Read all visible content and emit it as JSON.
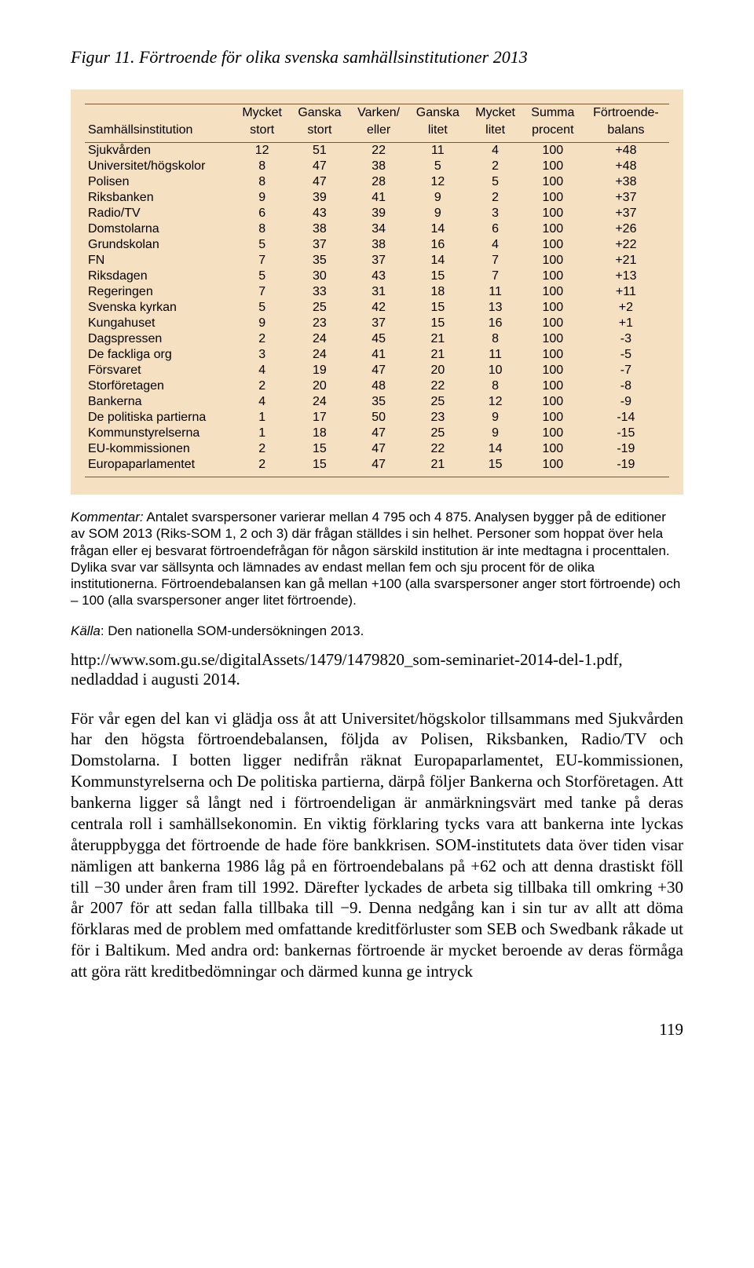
{
  "figure": {
    "label": "Figur 11.",
    "title": "Förtroende för olika svenska samhällsinstitutioner 2013"
  },
  "table": {
    "background_color": "#f5e0c2",
    "rule_color": "#7a5a30",
    "header_fontsize": 16,
    "body_fontsize": 16,
    "columns": [
      {
        "line1": "",
        "line2": "Samhällsinstitution",
        "align": "left"
      },
      {
        "line1": "Mycket",
        "line2": "stort"
      },
      {
        "line1": "Ganska",
        "line2": "stort"
      },
      {
        "line1": "Varken/",
        "line2": "eller"
      },
      {
        "line1": "Ganska",
        "line2": "litet"
      },
      {
        "line1": "Mycket",
        "line2": "litet"
      },
      {
        "line1": "Summa",
        "line2": "procent"
      },
      {
        "line1": "Förtroende-",
        "line2": "balans"
      }
    ],
    "rows": [
      {
        "name": "Sjukvården",
        "v": [
          "12",
          "51",
          "22",
          "11",
          "4",
          "100",
          "+48"
        ]
      },
      {
        "name": "Universitet/högskolor",
        "v": [
          "8",
          "47",
          "38",
          "5",
          "2",
          "100",
          "+48"
        ]
      },
      {
        "name": "Polisen",
        "v": [
          "8",
          "47",
          "28",
          "12",
          "5",
          "100",
          "+38"
        ]
      },
      {
        "name": "Riksbanken",
        "v": [
          "9",
          "39",
          "41",
          "9",
          "2",
          "100",
          "+37"
        ]
      },
      {
        "name": "Radio/TV",
        "v": [
          "6",
          "43",
          "39",
          "9",
          "3",
          "100",
          "+37"
        ]
      },
      {
        "name": "Domstolarna",
        "v": [
          "8",
          "38",
          "34",
          "14",
          "6",
          "100",
          "+26"
        ]
      },
      {
        "name": "Grundskolan",
        "v": [
          "5",
          "37",
          "38",
          "16",
          "4",
          "100",
          "+22"
        ]
      },
      {
        "name": "FN",
        "v": [
          "7",
          "35",
          "37",
          "14",
          "7",
          "100",
          "+21"
        ]
      },
      {
        "name": "Riksdagen",
        "v": [
          "5",
          "30",
          "43",
          "15",
          "7",
          "100",
          "+13"
        ]
      },
      {
        "name": "Regeringen",
        "v": [
          "7",
          "33",
          "31",
          "18",
          "11",
          "100",
          "+11"
        ]
      },
      {
        "name": "Svenska kyrkan",
        "v": [
          "5",
          "25",
          "42",
          "15",
          "13",
          "100",
          "+2"
        ]
      },
      {
        "name": "Kungahuset",
        "v": [
          "9",
          "23",
          "37",
          "15",
          "16",
          "100",
          "+1"
        ]
      },
      {
        "name": "Dagspressen",
        "v": [
          "2",
          "24",
          "45",
          "21",
          "8",
          "100",
          "-3"
        ]
      },
      {
        "name": "De fackliga org",
        "v": [
          "3",
          "24",
          "41",
          "21",
          "11",
          "100",
          "-5"
        ]
      },
      {
        "name": "Försvaret",
        "v": [
          "4",
          "19",
          "47",
          "20",
          "10",
          "100",
          "-7"
        ]
      },
      {
        "name": "Storföretagen",
        "v": [
          "2",
          "20",
          "48",
          "22",
          "8",
          "100",
          "-8"
        ]
      },
      {
        "name": "Bankerna",
        "v": [
          "4",
          "24",
          "35",
          "25",
          "12",
          "100",
          "-9"
        ]
      },
      {
        "name": "De politiska partierna",
        "v": [
          "1",
          "17",
          "50",
          "23",
          "9",
          "100",
          "-14"
        ]
      },
      {
        "name": "Kommunstyrelserna",
        "v": [
          "1",
          "18",
          "47",
          "25",
          "9",
          "100",
          "-15"
        ]
      },
      {
        "name": "EU-kommissionen",
        "v": [
          "2",
          "15",
          "47",
          "22",
          "14",
          "100",
          "-19"
        ]
      },
      {
        "name": "Europaparlamentet",
        "v": [
          "2",
          "15",
          "47",
          "21",
          "15",
          "100",
          "-19"
        ]
      }
    ]
  },
  "kommentar": {
    "label": "Kommentar:",
    "text": "Antalet svarspersoner varierar mellan 4 795 och 4 875. Analysen bygger på de editioner av SOM 2013 (Riks-SOM 1, 2 och 3) där frågan ställdes i sin helhet. Personer som hoppat över hela frågan eller ej besvarat förtroendefrågan för någon särskild institution är inte medtagna i procenttalen. Dylika svar var sällsynta och lämnades av endast mellan fem och sju procent för de olika institutionerna. Förtroendebalansen kan gå mellan +100 (alla svarspersoner anger stort förtroende) och – 100 (alla svarspersoner anger litet förtroende)."
  },
  "kalla": {
    "label": "Källa",
    "text": ": Den nationella SOM-undersökningen 2013."
  },
  "link": {
    "text": "http://www.som.gu.se/digitalAssets/1479/1479820_som-seminariet-2014-del-1.pdf, nedladdad i augusti 2014."
  },
  "paragraph": {
    "text": "För vår egen del kan vi glädja oss åt att Universitet/högskolor tillsammans med Sjukvården har den högsta förtroendebalansen, följda av Polisen, Riksbanken, Radio/TV och Domstolarna. I botten ligger nedifrån räknat Europaparlamentet, EU-kommissionen, Kommunstyrelserna och De politiska partierna, därpå följer Bankerna och Storföretagen. Att bankerna ligger så långt ned i förtroendeligan är anmärkningsvärt med tanke på deras centrala roll i samhällsekonomin. En viktig förklaring tycks vara att bankerna inte lyckas återuppbygga det förtroende de hade före bankkrisen. SOM-institutets data över tiden visar nämligen att bankerna 1986 låg på en förtroendebalans på +62 och att denna drastiskt föll till −30 under åren fram till 1992. Därefter lyckades de arbeta sig tillbaka till omkring +30 år 2007 för att sedan falla tillbaka till −9. Denna nedgång kan i sin tur av allt att döma förklaras med de problem med omfattande kreditförluster som SEB och Swedbank råkade ut för i Baltikum. Med andra ord: bankernas förtroende är mycket beroende av deras förmåga att göra rätt kreditbedömningar och därmed kunna ge intryck"
  },
  "page_number": "119"
}
